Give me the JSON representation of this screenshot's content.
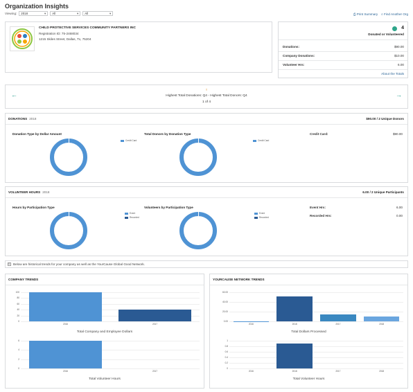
{
  "header": {
    "title": "Organization Insights",
    "viewing_label": "Viewing:",
    "filters": [
      "2018",
      "All",
      "All"
    ],
    "print_label": "Print Summary",
    "find_label": "Find Another Org"
  },
  "org": {
    "name": "CHILD PROTECTIVE SERVICES COMMUNITY PARTNERS INC",
    "registration": "Registration ID: 75-2468034",
    "address": "1215 Skiles Street, Dallas, Tx, 75204"
  },
  "summary": {
    "count": "4",
    "caption": "Donated or Volunteered",
    "rows": [
      {
        "label": "Donations:",
        "value": "$90.00"
      },
      {
        "label": "Company Donations:",
        "value": "$10.00"
      },
      {
        "label": "Volunteer Hrs:",
        "value": "6.00"
      }
    ],
    "about_link": "About the Totals"
  },
  "carousel": {
    "text": "Highest Total Donations: Q4 - Highest Total Donors: Q4",
    "page": "1 of 4"
  },
  "donations": {
    "title": "DONATIONS",
    "year": "2018",
    "total": "$90.00 / 2 Unique Donors",
    "chart1_title": "Donation Type by Dollar Amount",
    "chart1_legend": "Credit Card",
    "chart2_title": "Total Donors by Donation Type",
    "chart2_legend": "Credit Card",
    "detail_label": "Credit Card:",
    "detail_value": "$90.00"
  },
  "volunteer": {
    "title": "VOLUNTEER HOURS",
    "year": "2018",
    "total": "6.00 / 2 Unique Participants",
    "chart1_title": "Hours by Participation Type",
    "chart2_title": "Volunteers by Participation Type",
    "legend": [
      "Event",
      "Recorded"
    ],
    "details": [
      {
        "label": "Event Hrs:",
        "value": "6.00"
      },
      {
        "label": "Recorded Hrs:",
        "value": "0.00"
      }
    ]
  },
  "info_note": "Below are historical trends for your company as well as the YourCause Global Good Network.",
  "company_trends": {
    "title": "COMPANY TRENDS",
    "chart1_caption": "Total Company and Employee Dollars",
    "chart2_caption": "Total Volunteer Hours"
  },
  "network_trends": {
    "title": "YOURCAUSE NETWORK TRENDS",
    "chart1_caption": "Total Dollars Processed",
    "chart2_caption": "Total Volunteer Hours"
  },
  "colors": {
    "ring_blue": "#4f93d4",
    "bar_light": "#4f93d4",
    "bar_dark": "#2a5a93",
    "bar_teal": "#3a88c0",
    "bar_pale": "#6aa6df",
    "accent_green": "#2ea58a"
  },
  "chart_data": [
    {
      "type": "bar",
      "title": "Total Company and Employee Dollars",
      "categories": [
        "2016",
        "2017"
      ],
      "values": [
        100,
        40
      ],
      "ylim": [
        0,
        100
      ],
      "yticks": [
        "100",
        "80",
        "60",
        "40",
        "20",
        "0"
      ]
    },
    {
      "type": "bar",
      "title": "Total Volunteer Hours",
      "categories": [
        "2016",
        "2017"
      ],
      "values": [
        6,
        0
      ],
      "ylim": [
        0,
        6
      ],
      "yticks": [
        "6",
        "4",
        "2",
        "0"
      ]
    },
    {
      "type": "bar",
      "title": "Total Dollars Processed",
      "categories": [
        "2016",
        "2018",
        "2017",
        "2018"
      ],
      "values": [
        0.3,
        51,
        14,
        10
      ],
      "ylim": [
        0,
        60
      ],
      "yticks": [
        "60.00",
        "40.00",
        "20.00",
        "0.00"
      ]
    },
    {
      "type": "bar",
      "title": "Total Volunteer Hours",
      "categories": [
        "2016",
        "2018",
        "2017",
        "2018"
      ],
      "values": [
        0,
        0.9,
        0,
        0
      ],
      "ylim": [
        0,
        1
      ],
      "yticks": [
        "1",
        "0.8",
        "0.6",
        "0.4",
        "0.2",
        "0"
      ]
    }
  ]
}
